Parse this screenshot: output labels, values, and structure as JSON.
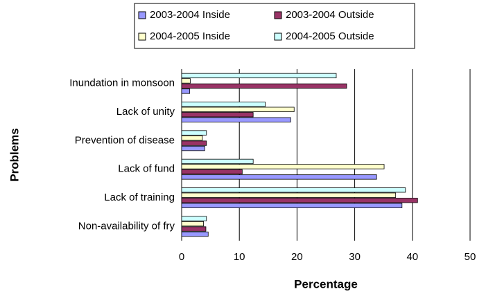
{
  "chart_data": {
    "type": "hbar",
    "xlabel": "Percentage",
    "ylabel": "Problems",
    "categories": [
      "Inundation in monsoon",
      "Lack of unity",
      "Prevention of disease",
      "Lack of fund",
      "Lack of training",
      "Non-availability of fry"
    ],
    "series": [
      {
        "name": "2003-2004 Inside",
        "color": "#9999ff",
        "values": [
          1.4,
          18.9,
          4.0,
          33.8,
          38.2,
          4.6
        ]
      },
      {
        "name": "2003-2004 Outside",
        "color": "#993366",
        "values": [
          28.6,
          12.4,
          4.3,
          10.5,
          40.9,
          4.2
        ]
      },
      {
        "name": "2004-2005 Inside",
        "color": "#ffffcc",
        "values": [
          1.5,
          19.5,
          3.6,
          35.1,
          37.1,
          3.8
        ]
      },
      {
        "name": "2004-2005 Outside",
        "color": "#ccffff",
        "values": [
          26.8,
          14.5,
          4.3,
          12.4,
          38.8,
          4.3
        ]
      }
    ],
    "xlim": [
      0,
      50
    ],
    "xticks": [
      0,
      10,
      20,
      30,
      40,
      50
    ],
    "grid": true
  }
}
